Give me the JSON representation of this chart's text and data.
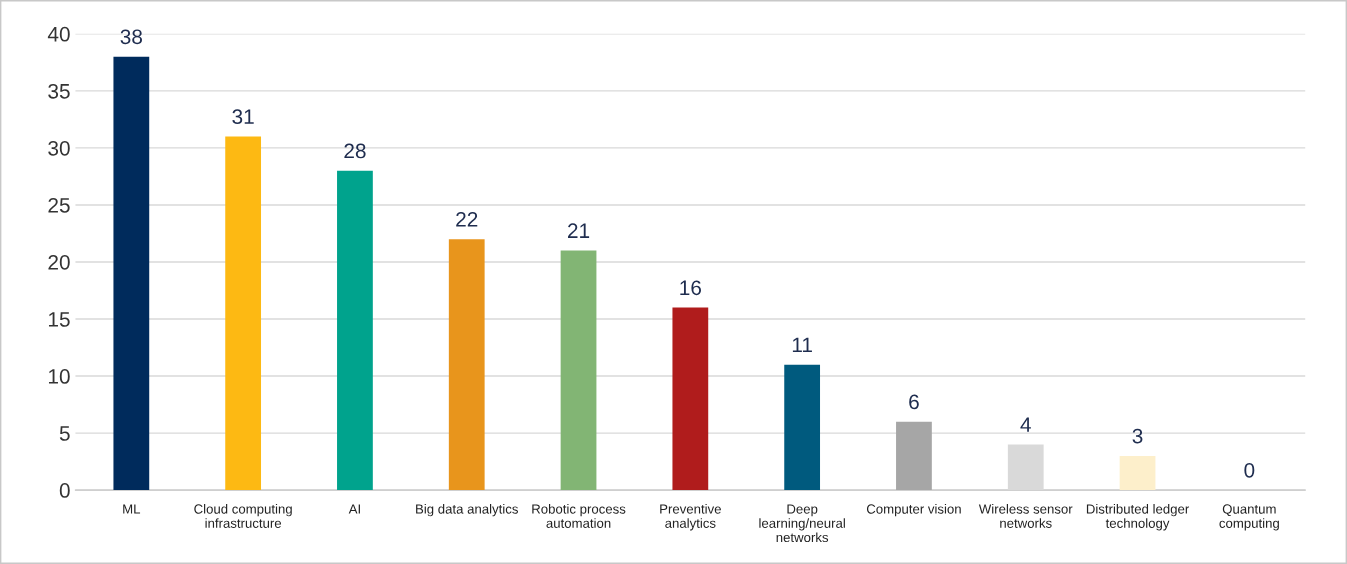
{
  "chart_data": {
    "type": "bar",
    "categories": [
      "ML",
      "Cloud computing\ninfrastructure",
      "AI",
      "Big data analytics",
      "Robotic process\nautomation",
      "Preventive\nanalytics",
      "Deep\nlearning/neural\nnetworks",
      "Computer vision",
      "Wireless sensor\nnetworks",
      "Distributed ledger\ntechnology",
      "Quantum\ncomputing"
    ],
    "values": [
      38,
      31,
      28,
      22,
      21,
      16,
      11,
      6,
      4,
      3,
      0
    ],
    "colors": [
      "#002b5c",
      "#fdb913",
      "#00a38d",
      "#e8951c",
      "#82b574",
      "#b01c1c",
      "#005a7e",
      "#a6a6a6",
      "#d9d9d9",
      "#fdefcb",
      "#7f7f7f"
    ],
    "ylim": [
      0,
      40
    ],
    "yticks": [
      0,
      5,
      10,
      15,
      20,
      25,
      30,
      35,
      40
    ],
    "grid": "y",
    "data_labels": true
  }
}
